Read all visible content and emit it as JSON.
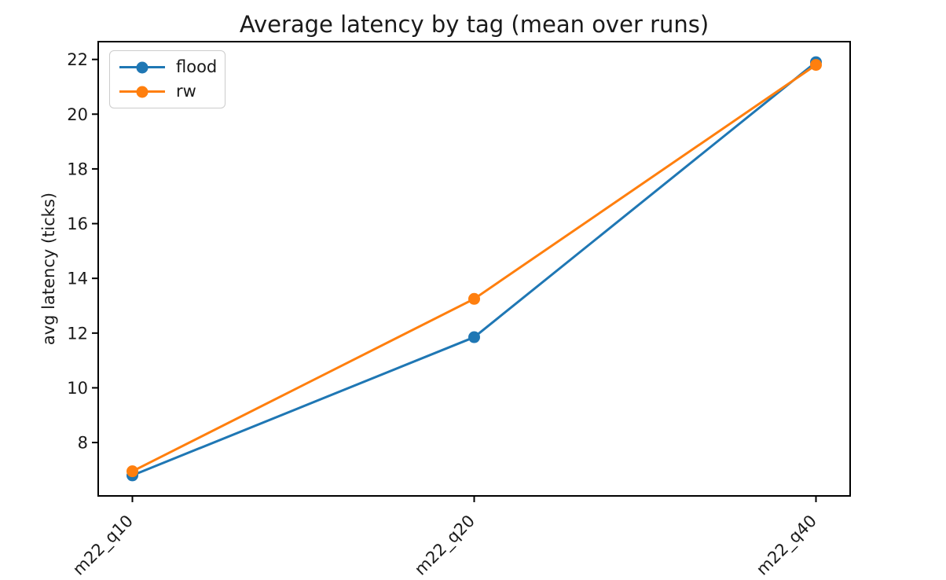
{
  "chart_data": {
    "type": "line",
    "title": "Average latency by tag (mean over runs)",
    "xlabel": "",
    "ylabel": "avg latency (ticks)",
    "categories": [
      "m22_q10",
      "m22_q20",
      "m22_q40"
    ],
    "series": [
      {
        "name": "flood",
        "color": "#1f77b4",
        "values": [
          6.8,
          11.85,
          21.9
        ]
      },
      {
        "name": "rw",
        "color": "#ff7f0e",
        "values": [
          6.95,
          13.25,
          21.8
        ]
      }
    ],
    "yticks": [
      8,
      10,
      12,
      14,
      16,
      18,
      20,
      22
    ],
    "ylim": [
      6.05,
      22.65
    ],
    "x_tick_rotation": 45,
    "grid": false,
    "legend_position": "upper left",
    "marker": "circle",
    "axis_color": "#000000",
    "text_color": "#1a1a1a"
  }
}
